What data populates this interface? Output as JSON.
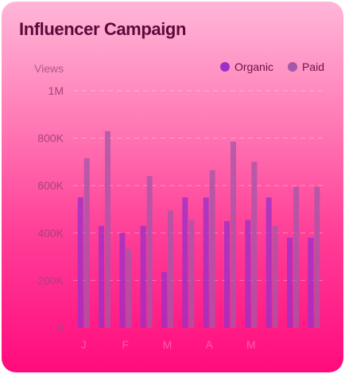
{
  "chart_data": {
    "type": "bar",
    "title": "Influencer Campaign",
    "ylabel": "Views",
    "ylim": [
      0,
      1000000
    ],
    "y_ticks": [
      "0",
      "200K",
      "400K",
      "600K",
      "800K",
      "1M"
    ],
    "categories": [
      "J",
      "",
      "F",
      "",
      "M",
      "",
      "A",
      "",
      "M",
      "",
      "",
      ""
    ],
    "series": [
      {
        "name": "Organic",
        "color": "#9b30c8",
        "values": [
          550000,
          430000,
          400000,
          430000,
          235000,
          550000,
          550000,
          450000,
          455000,
          550000,
          380000,
          380000
        ]
      },
      {
        "name": "Paid",
        "color": "#a557a8",
        "values": [
          715000,
          830000,
          335000,
          640000,
          495000,
          455000,
          665000,
          785000,
          700000,
          430000,
          595000,
          595000
        ]
      }
    ],
    "grid": true,
    "legend": "top-right"
  }
}
